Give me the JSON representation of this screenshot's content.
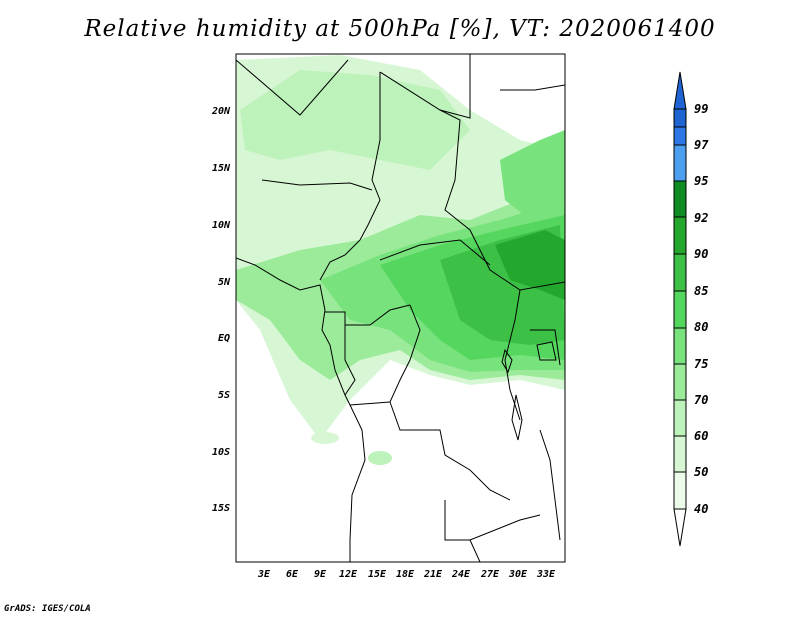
{
  "title": "Relative humidity at 500hPa [%], VT: 2020061400",
  "credit": "GrADS: IGES/COLA",
  "map": {
    "lat_range": [
      -20,
      25
    ],
    "lon_range": [
      0,
      35
    ],
    "lat_labels": [
      "20N",
      "15N",
      "10N",
      "5N",
      "EQ",
      "5S",
      "10S",
      "15S"
    ],
    "lon_labels": [
      "3E",
      "6E",
      "9E",
      "12E",
      "15E",
      "18E",
      "21E",
      "24E",
      "27E",
      "30E",
      "33E"
    ],
    "field": "relative humidity, 500 hPa",
    "features": [
      "humid band 5S-10N",
      "dry south of 5S",
      "moist patches 15-22N"
    ]
  },
  "colorbar": {
    "levels": [
      "99",
      "97",
      "95",
      "92",
      "90",
      "85",
      "80",
      "75",
      "70",
      "60",
      "50",
      "40"
    ],
    "colors": [
      "#1e64d2",
      "#2d78e6",
      "#4da0f0",
      "#0f8c23",
      "#23a82d",
      "#3cc146",
      "#55d65f",
      "#78e27d",
      "#9ceb9a",
      "#bdf2ba",
      "#d7f7d4",
      "#ecfbea"
    ]
  }
}
